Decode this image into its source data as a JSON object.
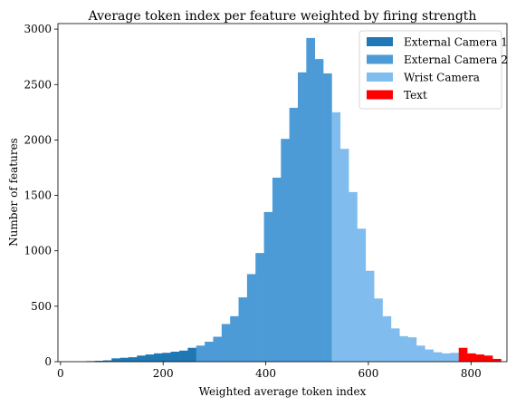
{
  "chart_data": {
    "type": "bar",
    "title": "Average token index per feature weighted by firing strength",
    "xlabel": "Weighted average token index",
    "ylabel": "Number of features",
    "xlim": [
      -5,
      870
    ],
    "ylim": [
      0,
      3050
    ],
    "xticks": [
      0,
      200,
      400,
      600,
      800
    ],
    "yticks": [
      0,
      500,
      1000,
      1500,
      2000,
      2500,
      3000
    ],
    "grid": false,
    "legend_position": "top-right",
    "bin_width": 16.5,
    "series": [
      {
        "name": "External Camera 1",
        "color": "#1f77b4",
        "bin_starts": [
          50,
          66.5,
          83,
          99.5,
          116,
          132.5,
          149,
          165.5,
          182,
          198.5,
          215,
          231.5,
          248
        ],
        "values": [
          5,
          8,
          12,
          30,
          35,
          40,
          55,
          65,
          75,
          80,
          90,
          100,
          125
        ]
      },
      {
        "name": "External Camera 2",
        "color": "#4c9ad6",
        "bin_starts": [
          264.5,
          281,
          297.5,
          314,
          330.5,
          347,
          363.5,
          380,
          396.5,
          413,
          429.5,
          446,
          462.5,
          479,
          495.5,
          512
        ],
        "values": [
          145,
          180,
          225,
          340,
          410,
          580,
          790,
          980,
          1350,
          1660,
          2010,
          2290,
          2610,
          2920,
          2730,
          2600
        ]
      },
      {
        "name": "Wrist Camera",
        "color": "#80bdee",
        "bin_starts": [
          528.5,
          545,
          561.5,
          578,
          594.5,
          611,
          627.5,
          644,
          660.5,
          677,
          693.5,
          710,
          726.5,
          743,
          759.5
        ],
        "values": [
          2250,
          1920,
          1530,
          1200,
          820,
          570,
          410,
          300,
          230,
          220,
          145,
          110,
          85,
          75,
          80
        ]
      },
      {
        "name": "Text",
        "color": "#ff0000",
        "bin_starts": [
          776,
          792.5,
          809,
          825.5,
          842
        ],
        "values": [
          125,
          75,
          65,
          55,
          25
        ]
      }
    ]
  }
}
